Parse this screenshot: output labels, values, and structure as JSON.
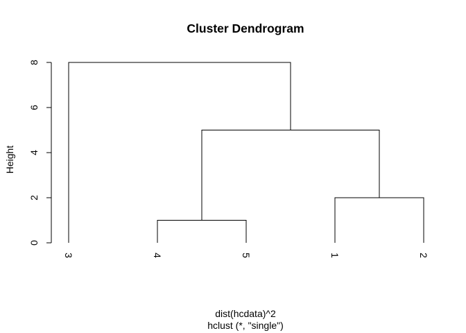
{
  "chart_data": {
    "type": "dendrogram",
    "title": "Cluster Dendrogram",
    "ylabel": "Height",
    "xlabel": "dist(hcdata)^2",
    "sub": "hclust (*, \"single\")",
    "ylim": [
      0,
      8
    ],
    "yticks": [
      0,
      2,
      4,
      6,
      8
    ],
    "leaf_order": [
      "3",
      "4",
      "5",
      "1",
      "2"
    ],
    "merges": [
      {
        "left": "4",
        "right": "5",
        "height": 1
      },
      {
        "left": "1",
        "right": "2",
        "height": 2
      },
      {
        "left": "4,5",
        "right": "1,2",
        "height": 5
      },
      {
        "left": "3",
        "right": "4,5,1,2",
        "height": 8
      }
    ],
    "grid": false,
    "line_color": "#000000"
  }
}
